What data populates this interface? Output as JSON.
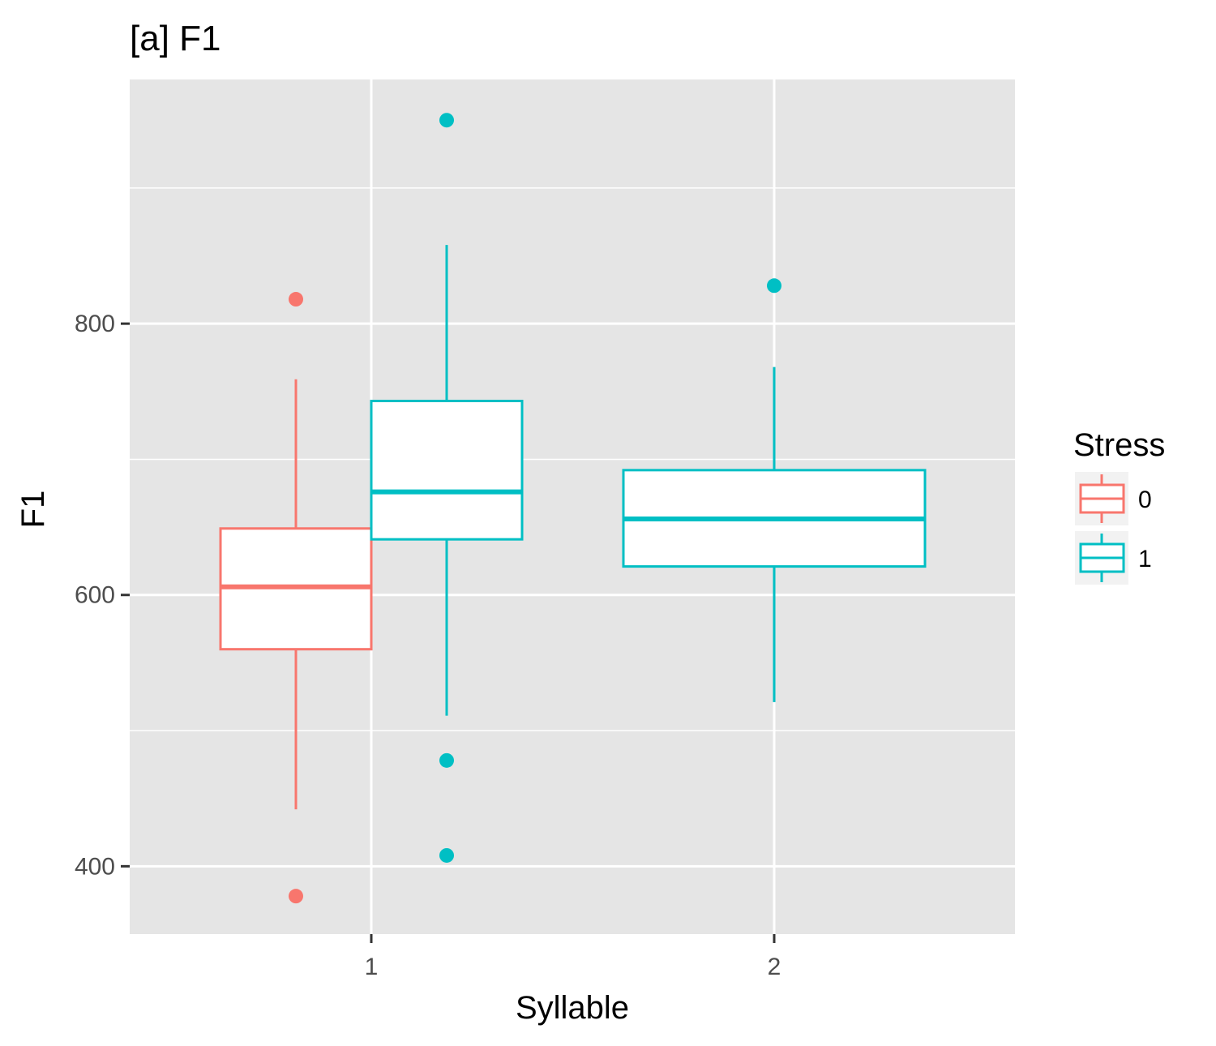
{
  "chart_data": {
    "type": "boxplot",
    "title": "[a] F1",
    "xlabel": "Syllable",
    "ylabel": "F1",
    "categories": [
      "1",
      "2"
    ],
    "yticks": [
      400,
      600,
      800
    ],
    "ylim": [
      350,
      980
    ],
    "grid": true,
    "legend": {
      "title": "Stress",
      "position": "right",
      "entries": [
        "0",
        "1"
      ]
    },
    "colors": {
      "0": "#F8766D",
      "1": "#00BFC4",
      "panel": "#E5E5E5",
      "grid": "#FFFFFF"
    },
    "series": [
      {
        "name": "0",
        "boxes": [
          {
            "category": "1",
            "whisker_low": 442,
            "q1": 560,
            "median": 606,
            "q3": 649,
            "whisker_high": 759,
            "outliers": [
              818,
              378
            ]
          }
        ]
      },
      {
        "name": "1",
        "boxes": [
          {
            "category": "1",
            "whisker_low": 511,
            "q1": 641,
            "median": 676,
            "q3": 743,
            "whisker_high": 858,
            "outliers": [
              950,
              478,
              408
            ]
          },
          {
            "category": "2",
            "whisker_low": 521,
            "q1": 621,
            "median": 656,
            "q3": 692,
            "whisker_high": 768,
            "outliers": [
              828
            ]
          }
        ]
      }
    ]
  }
}
